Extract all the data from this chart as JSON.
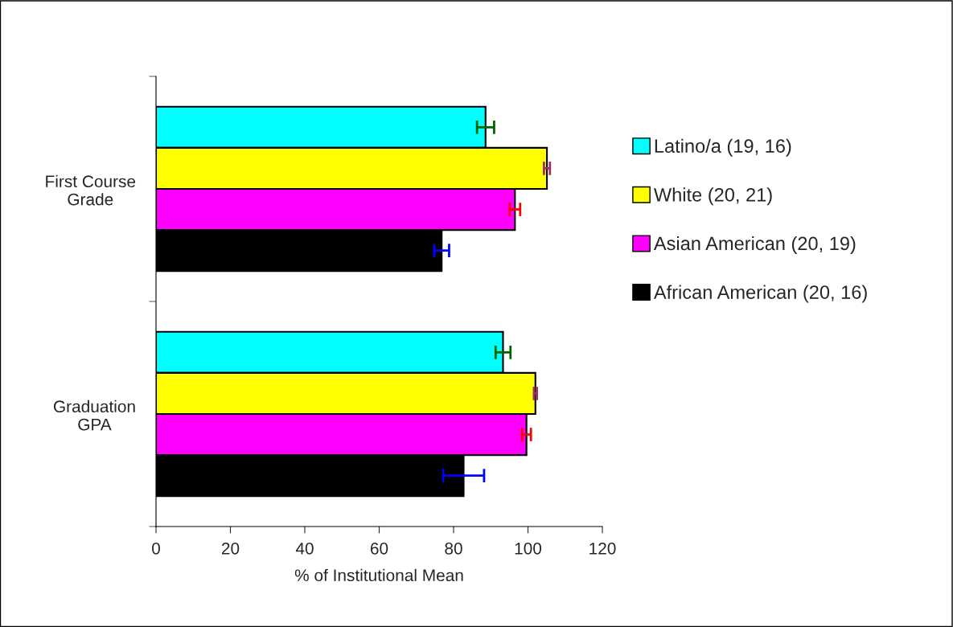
{
  "chart_data": {
    "type": "bar",
    "orientation": "horizontal",
    "xlabel": "% of Institutional Mean",
    "categories": [
      "First Course\nGrade",
      "Graduation\nGPA"
    ],
    "series": [
      {
        "name": "Latino/a (19, 16)",
        "color": "#00ffff",
        "values": [
          88.6,
          93.3
        ],
        "errors": [
          2.3,
          2.0
        ]
      },
      {
        "name": "White (20, 21)",
        "color": "#ffff00",
        "values": [
          105.1,
          102.0
        ],
        "errors": [
          0.8,
          0.4
        ]
      },
      {
        "name": "Asian American (20, 19)",
        "color": "#ff00ff",
        "values": [
          96.5,
          99.6
        ],
        "errors": [
          1.4,
          1.2
        ]
      },
      {
        "name": "African American (20, 16)",
        "color": "#000000",
        "values": [
          76.8,
          82.7
        ],
        "errors": [
          2.0,
          5.5
        ]
      }
    ],
    "xlim": [
      0,
      120
    ],
    "xticks": [
      0,
      20,
      40,
      60,
      80,
      100,
      120
    ],
    "grid": false,
    "legend": "right"
  }
}
